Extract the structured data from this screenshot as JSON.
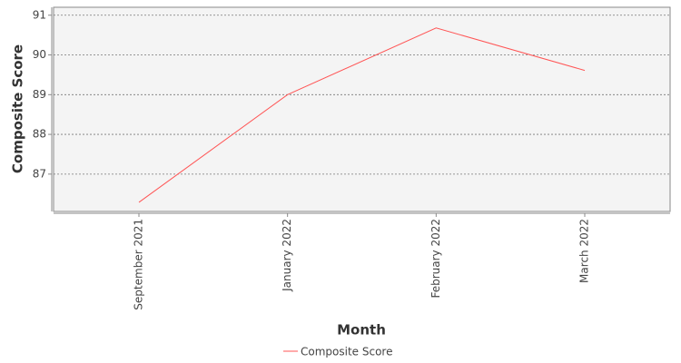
{
  "chart_data": {
    "type": "line",
    "x_label": "Month",
    "y_label": "Composite Score",
    "categories": [
      "September 2021",
      "January 2022",
      "February 2022",
      "March 2022"
    ],
    "series": [
      {
        "name": "Composite Score",
        "color": "#ff5555",
        "values": [
          86.29,
          89.0,
          90.68,
          89.61
        ]
      }
    ],
    "ylim": [
      86.06,
      91.2
    ],
    "yticks": [
      87,
      88,
      89,
      90,
      91
    ],
    "grid": true
  }
}
